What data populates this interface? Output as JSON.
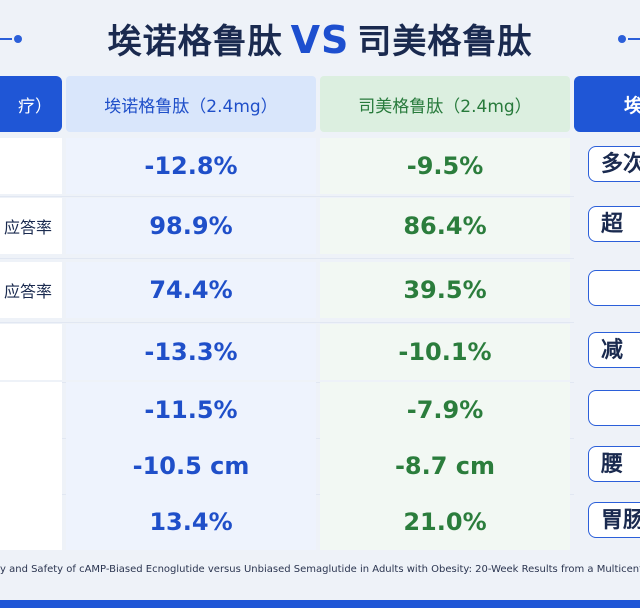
{
  "title": {
    "left": "埃诺格鲁肽",
    "vs": "VS",
    "right": "司美格鲁肽"
  },
  "header": {
    "left": "疗）",
    "blue": "埃诺格鲁肽（2.4mg）",
    "green": "司美格鲁肽（2.4mg）",
    "right": "埃"
  },
  "rows": [
    {
      "left": "",
      "blue": "-12.8%",
      "green": "-9.5%",
      "tag": "多次"
    },
    {
      "left": "应答率",
      "blue": "98.9%",
      "green": "86.4%",
      "tag": "超"
    },
    {
      "left": "应答率",
      "blue": "74.4%",
      "green": "39.5%",
      "tag": ""
    },
    {
      "left": "",
      "blue": "-13.3%",
      "green": "-10.1%",
      "tag": "减"
    },
    {
      "left": "",
      "blue": "-11.5%",
      "green": "-7.9%",
      "tag": ""
    },
    {
      "left": "",
      "blue": "-10.5 cm",
      "green": "-8.7 cm",
      "tag": "腰"
    },
    {
      "left": "",
      "blue": "13.4%",
      "green": "21.0%",
      "tag": "胃肠"
    }
  ],
  "footer": "y and Safety of cAMP-Biased Ecnoglutide versus Unbiased Semaglutide in Adults with Obesity: 20-Week Results from a Multicenter, Randomized"
}
